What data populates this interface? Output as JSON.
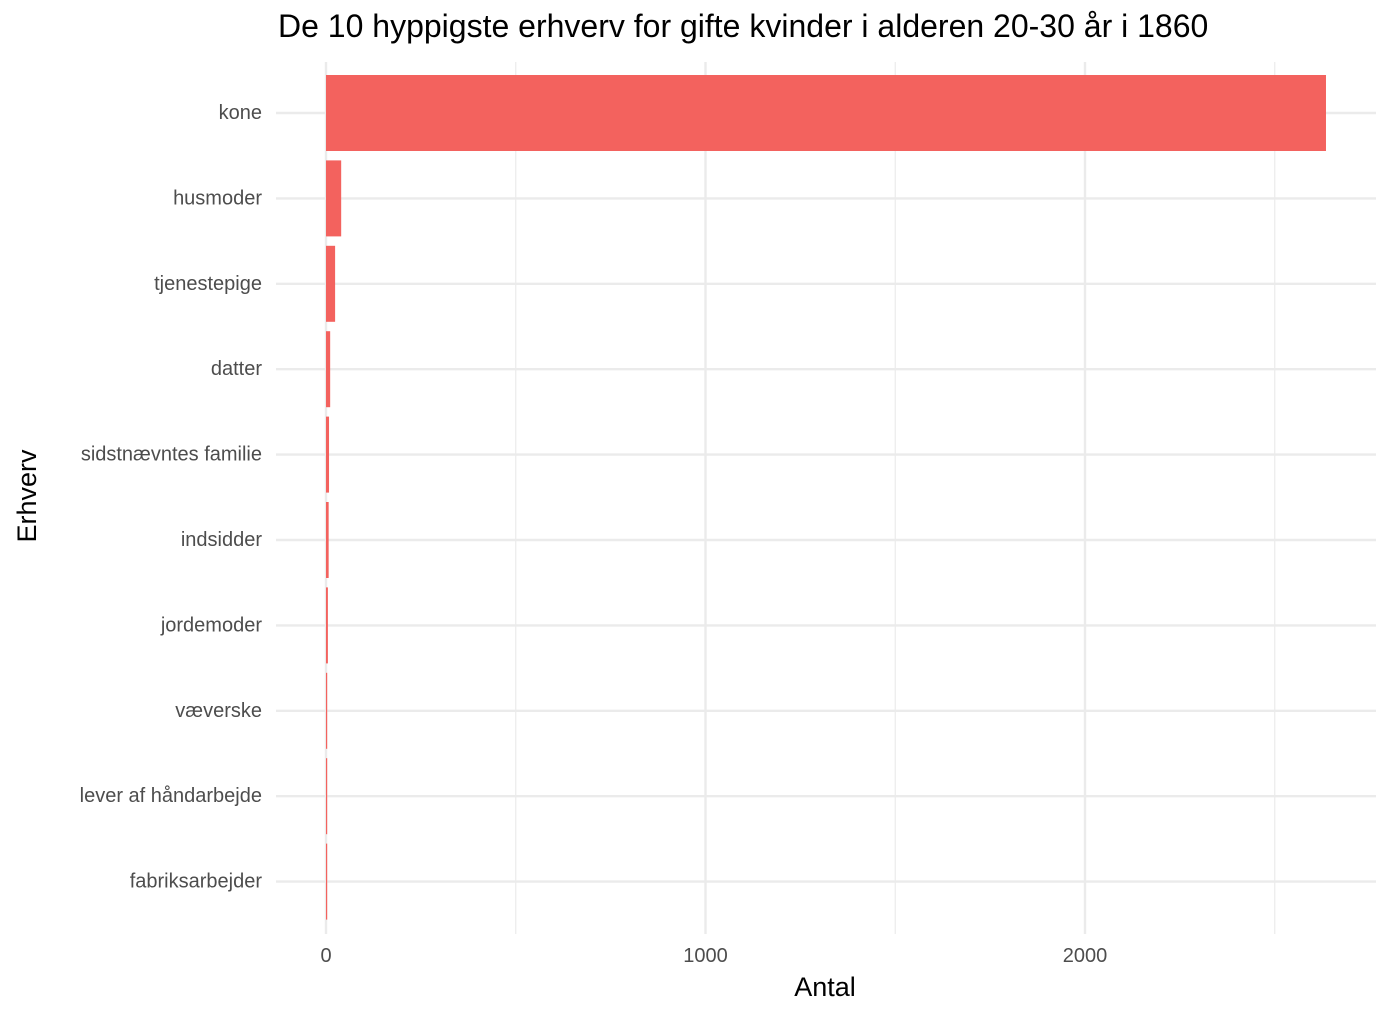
{
  "chart_data": {
    "type": "bar",
    "orientation": "horizontal",
    "title": "De 10 hyppigste erhverv for gifte kvinder i alderen 20-30 år i 1860",
    "xlabel": "Antal",
    "ylabel": "Erhverv",
    "categories": [
      "kone",
      "husmoder",
      "tjenestepige",
      "datter",
      "sidstnævntes familie",
      "indsidder",
      "jordemoder",
      "væverske",
      "lever af håndarbejde",
      "fabriksarbejder"
    ],
    "values": [
      2635,
      40,
      24,
      11,
      8,
      7,
      5,
      2,
      2,
      2
    ],
    "xlim": [
      0,
      2635
    ],
    "xticks": [
      0,
      1000,
      2000
    ],
    "grid": true,
    "bar_color": "#F3625E"
  }
}
